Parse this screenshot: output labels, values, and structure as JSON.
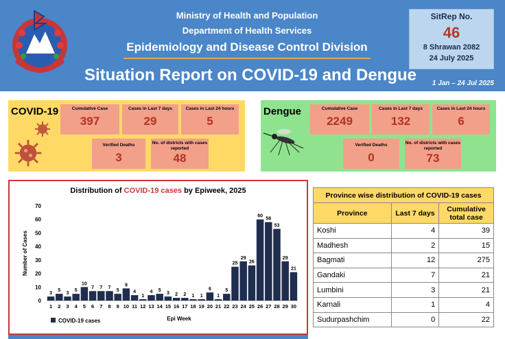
{
  "header": {
    "line1": "Ministry of Health and Population",
    "line2": "Department of Health Services",
    "line3": "Epidemiology and Disease Control Division",
    "title": "Situation Report on COVID-19 and Dengue",
    "date_range": "1 Jan – 24 Jul 2025",
    "colors": {
      "header_bg": "#4a86c8",
      "accent": "#c8363a"
    }
  },
  "sitrep": {
    "label": "SitRep No.",
    "number": "46",
    "date_np": "8 Shrawan 2082",
    "date_en": "24 July 2025"
  },
  "covid": {
    "title": "COVID-19",
    "cumulative_label": "Cumulative Case",
    "cumulative": "397",
    "last7_label": "Cases in Last 7 days",
    "last7": "29",
    "last24_label": "Cases in Last 24 hours",
    "last24": "5",
    "deaths_label": "Verified Deaths",
    "deaths": "3",
    "districts_label": "No. of districts with cases reported",
    "districts": "48"
  },
  "dengue": {
    "title": "Dengue",
    "cumulative_label": "Cumulative Case",
    "cumulative": "2249",
    "last7_label": "Cases in Last 7 days",
    "last7": "132",
    "last24_label": "Cases in Last 24 hours",
    "last24": "6",
    "deaths_label": "Verified Deaths",
    "deaths": "0",
    "districts_label": "No. of districts with cases reported",
    "districts": "73"
  },
  "chart_title_pre": "Distribution of ",
  "chart_title_red": "COVID-19 cases",
  "chart_title_post": " by Epiweek, 2025",
  "chart_data": {
    "type": "bar",
    "title": "Distribution of COVID-19 cases by Epiweek, 2025",
    "xlabel": "Epi Week",
    "ylabel": "Number of Cases",
    "ylim": [
      0,
      70
    ],
    "yticks": [
      0,
      10,
      20,
      30,
      40,
      50,
      60,
      70
    ],
    "categories": [
      "1",
      "2",
      "3",
      "4",
      "5",
      "6",
      "7",
      "8",
      "9",
      "10",
      "11",
      "12",
      "13",
      "14",
      "15",
      "16",
      "17",
      "18",
      "19",
      "20",
      "21",
      "22",
      "23",
      "24",
      "25",
      "26",
      "27",
      "28",
      "29",
      "30"
    ],
    "series": [
      {
        "name": "COVID-19 cases",
        "color": "#1f2d4f",
        "values": [
          3,
          5,
          3,
          5,
          10,
          7,
          7,
          7,
          5,
          9,
          4,
          1,
          4,
          5,
          3,
          2,
          2,
          1,
          1,
          6,
          1,
          5,
          25,
          29,
          26,
          60,
          58,
          53,
          29,
          21
        ]
      }
    ],
    "legend": "bottom-left",
    "grid": false
  },
  "province_table": {
    "caption": "Province wise distribution of COVID-19 cases",
    "headers": [
      "Province",
      "Last 7 days",
      "Cumulative total case"
    ],
    "rows": [
      [
        "Koshi",
        "4",
        "39"
      ],
      [
        "Madhesh",
        "2",
        "15"
      ],
      [
        "Bagmati",
        "12",
        "275"
      ],
      [
        "Gandaki",
        "7",
        "21"
      ],
      [
        "Lumbini",
        "3",
        "21"
      ],
      [
        "Karnali",
        "1",
        "4"
      ],
      [
        "Sudurpashchim",
        "0",
        "22"
      ]
    ]
  }
}
